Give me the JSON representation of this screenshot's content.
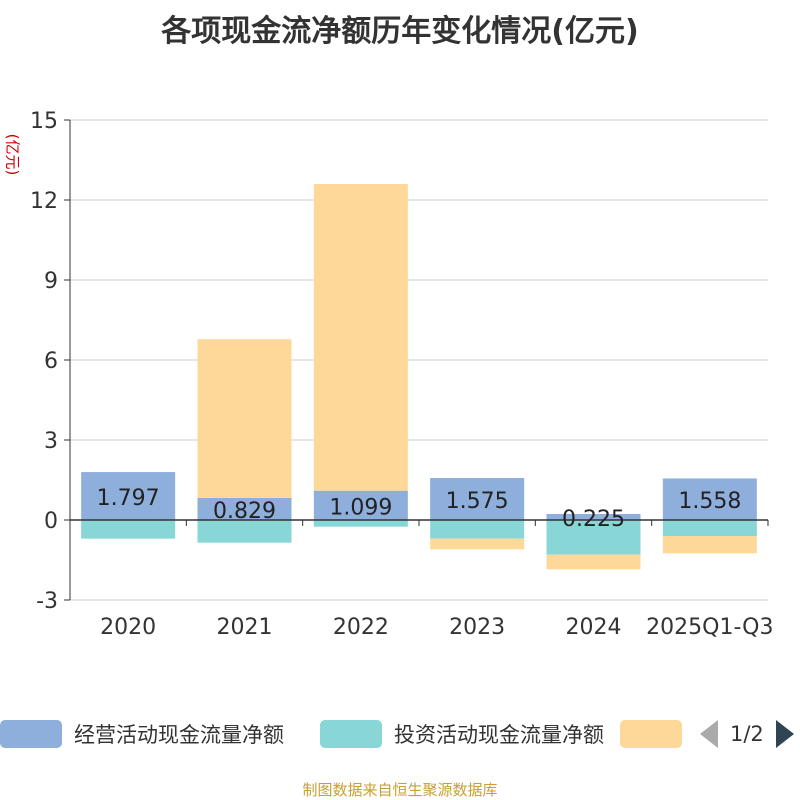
{
  "chart_data": {
    "type": "bar",
    "stacked": true,
    "title": "各项现金流净额历年变化情况(亿元)",
    "ylabel": "(亿元)",
    "ylim": [
      -3,
      15
    ],
    "yticks": [
      -3,
      0,
      3,
      6,
      9,
      12,
      15
    ],
    "categories": [
      "2020",
      "2021",
      "2022",
      "2023",
      "2024",
      "2025Q1-Q3"
    ],
    "series": [
      {
        "name": "经营活动现金流量净额",
        "color": "#8eaedb",
        "values": [
          1.797,
          0.829,
          1.099,
          1.575,
          0.225,
          1.558
        ],
        "labels": [
          "1.797",
          "0.829",
          "1.099",
          "1.575",
          "0.225",
          "1.558"
        ]
      },
      {
        "name": "投资活动现金流量净额",
        "color": "#88d6d6",
        "values": [
          -0.7,
          -0.85,
          -0.25,
          -0.7,
          -1.3,
          -0.6
        ]
      },
      {
        "name": "",
        "color": "#fed898",
        "values": [
          0,
          5.95,
          11.5,
          -0.4,
          -0.55,
          -0.65
        ]
      }
    ],
    "grid": true,
    "legend_position": "bottom"
  },
  "legend": {
    "items": [
      "经营活动现金流量净额",
      "投资活动现金流量净额",
      ""
    ],
    "page": "1/2"
  },
  "source": "制图数据来自恒生聚源数据库"
}
